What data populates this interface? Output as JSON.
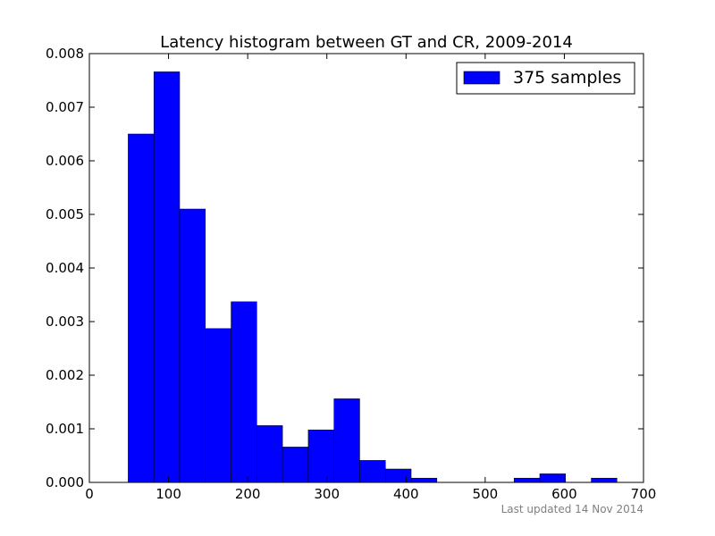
{
  "chart_data": {
    "type": "bar",
    "title": "Latency histogram between GT and CR, 2009-2014",
    "xlabel": "",
    "ylabel": "",
    "xlim": [
      0,
      700
    ],
    "ylim": [
      0,
      0.008
    ],
    "x_ticks": [
      "0",
      "100",
      "200",
      "300",
      "400",
      "500",
      "600",
      "700"
    ],
    "y_ticks": [
      "0.000",
      "0.001",
      "0.002",
      "0.003",
      "0.004",
      "0.005",
      "0.006",
      "0.007",
      "0.008"
    ],
    "grid": false,
    "legend_position": "top-right",
    "series": [
      {
        "name": "375 samples",
        "color": "#0000ff",
        "bins": [
          {
            "x0": 49,
            "x1": 81.5,
            "value": 0.0065
          },
          {
            "x0": 81.5,
            "x1": 114,
            "value": 0.00766
          },
          {
            "x0": 114,
            "x1": 146.5,
            "value": 0.0051
          },
          {
            "x0": 146.5,
            "x1": 179,
            "value": 0.00287
          },
          {
            "x0": 179,
            "x1": 211.5,
            "value": 0.00337
          },
          {
            "x0": 211.5,
            "x1": 244,
            "value": 0.00106
          },
          {
            "x0": 244,
            "x1": 276.5,
            "value": 0.00066
          },
          {
            "x0": 276.5,
            "x1": 309,
            "value": 0.00098
          },
          {
            "x0": 309,
            "x1": 341.5,
            "value": 0.00156
          },
          {
            "x0": 341.5,
            "x1": 374,
            "value": 0.00041
          },
          {
            "x0": 374,
            "x1": 406.5,
            "value": 0.00025
          },
          {
            "x0": 406.5,
            "x1": 439,
            "value": 8e-05
          },
          {
            "x0": 439,
            "x1": 471.5,
            "value": 0
          },
          {
            "x0": 471.5,
            "x1": 504,
            "value": 0
          },
          {
            "x0": 504,
            "x1": 536.5,
            "value": 0
          },
          {
            "x0": 536.5,
            "x1": 569,
            "value": 8e-05
          },
          {
            "x0": 569,
            "x1": 601.5,
            "value": 0.00016
          },
          {
            "x0": 601.5,
            "x1": 634,
            "value": 0
          },
          {
            "x0": 634,
            "x1": 666.5,
            "value": 8e-05
          }
        ]
      }
    ],
    "footer": "Last updated 14 Nov 2014"
  }
}
